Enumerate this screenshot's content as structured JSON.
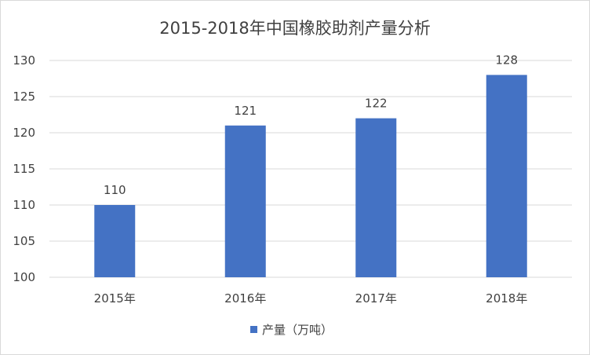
{
  "chart_data": {
    "type": "bar",
    "title": "2015-2018年中国橡胶助剂产量分析",
    "categories": [
      "2015年",
      "2016年",
      "2017年",
      "2018年"
    ],
    "series": [
      {
        "name": "产量（万吨）",
        "values": [
          110,
          121,
          122,
          128
        ],
        "color": "#4472c4"
      }
    ],
    "xlabel": "",
    "ylabel": "",
    "ylim": [
      100,
      130
    ],
    "yticks": [
      100,
      105,
      110,
      115,
      120,
      125,
      130
    ],
    "grid": true,
    "legend": "bottom",
    "data_labels": true
  }
}
